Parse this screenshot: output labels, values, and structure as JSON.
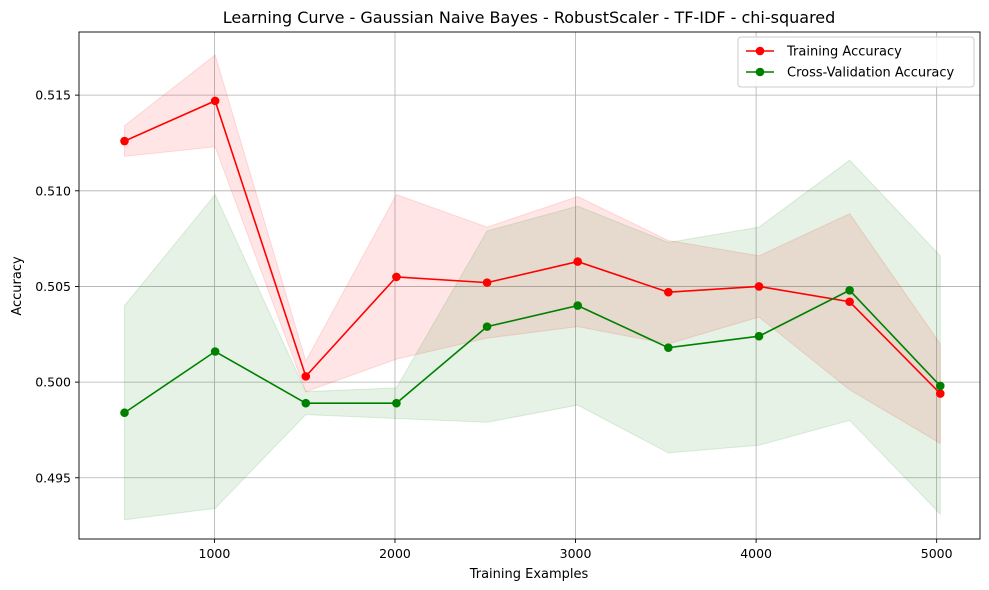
{
  "chart_data": {
    "type": "line",
    "title": "Learning Curve - Gaussian Naive Bayes - RobustScaler - TF-IDF - chi-squared",
    "xlabel": "Training Examples",
    "ylabel": "Accuracy",
    "xlim": [
      250,
      5240
    ],
    "ylim": [
      0.4918,
      0.5183
    ],
    "xticks": [
      1000,
      2000,
      3000,
      4000,
      5000
    ],
    "xtick_labels": [
      "1000",
      "2000",
      "3000",
      "4000",
      "5000"
    ],
    "yticks": [
      0.495,
      0.5,
      0.505,
      0.51,
      0.515
    ],
    "ytick_labels": [
      "0.495",
      "0.500",
      "0.505",
      "0.510",
      "0.515"
    ],
    "grid": true,
    "legend_position": "top-right",
    "x": [
      502,
      1004,
      1506,
      2008,
      2510,
      3012,
      3514,
      4016,
      4518,
      5020
    ],
    "series": [
      {
        "name": "Training Accuracy",
        "color": "#ff0000",
        "values": [
          0.5126,
          0.5147,
          0.5003,
          0.5055,
          0.5052,
          0.5063,
          0.5047,
          0.505,
          0.5042,
          0.4994
        ],
        "upper": [
          0.5134,
          0.5171,
          0.5011,
          0.5098,
          0.5081,
          0.5097,
          0.5074,
          0.5066,
          0.5088,
          0.502
        ],
        "lower": [
          0.5118,
          0.5123,
          0.4995,
          0.5012,
          0.5023,
          0.5029,
          0.502,
          0.5034,
          0.4996,
          0.4968
        ],
        "band_color": "#ff0000"
      },
      {
        "name": "Cross-Validation Accuracy",
        "color": "#008000",
        "values": [
          0.4984,
          0.5016,
          0.4989,
          0.4989,
          0.5029,
          0.504,
          0.5018,
          0.5024,
          0.5048,
          0.4998
        ],
        "upper": [
          0.504,
          0.5098,
          0.4995,
          0.4997,
          0.5079,
          0.5092,
          0.5073,
          0.5081,
          0.5116,
          0.5066
        ],
        "lower": [
          0.4928,
          0.4934,
          0.4983,
          0.4981,
          0.4979,
          0.4988,
          0.4963,
          0.4967,
          0.498,
          0.4931
        ],
        "band_color": "#008000"
      }
    ]
  }
}
